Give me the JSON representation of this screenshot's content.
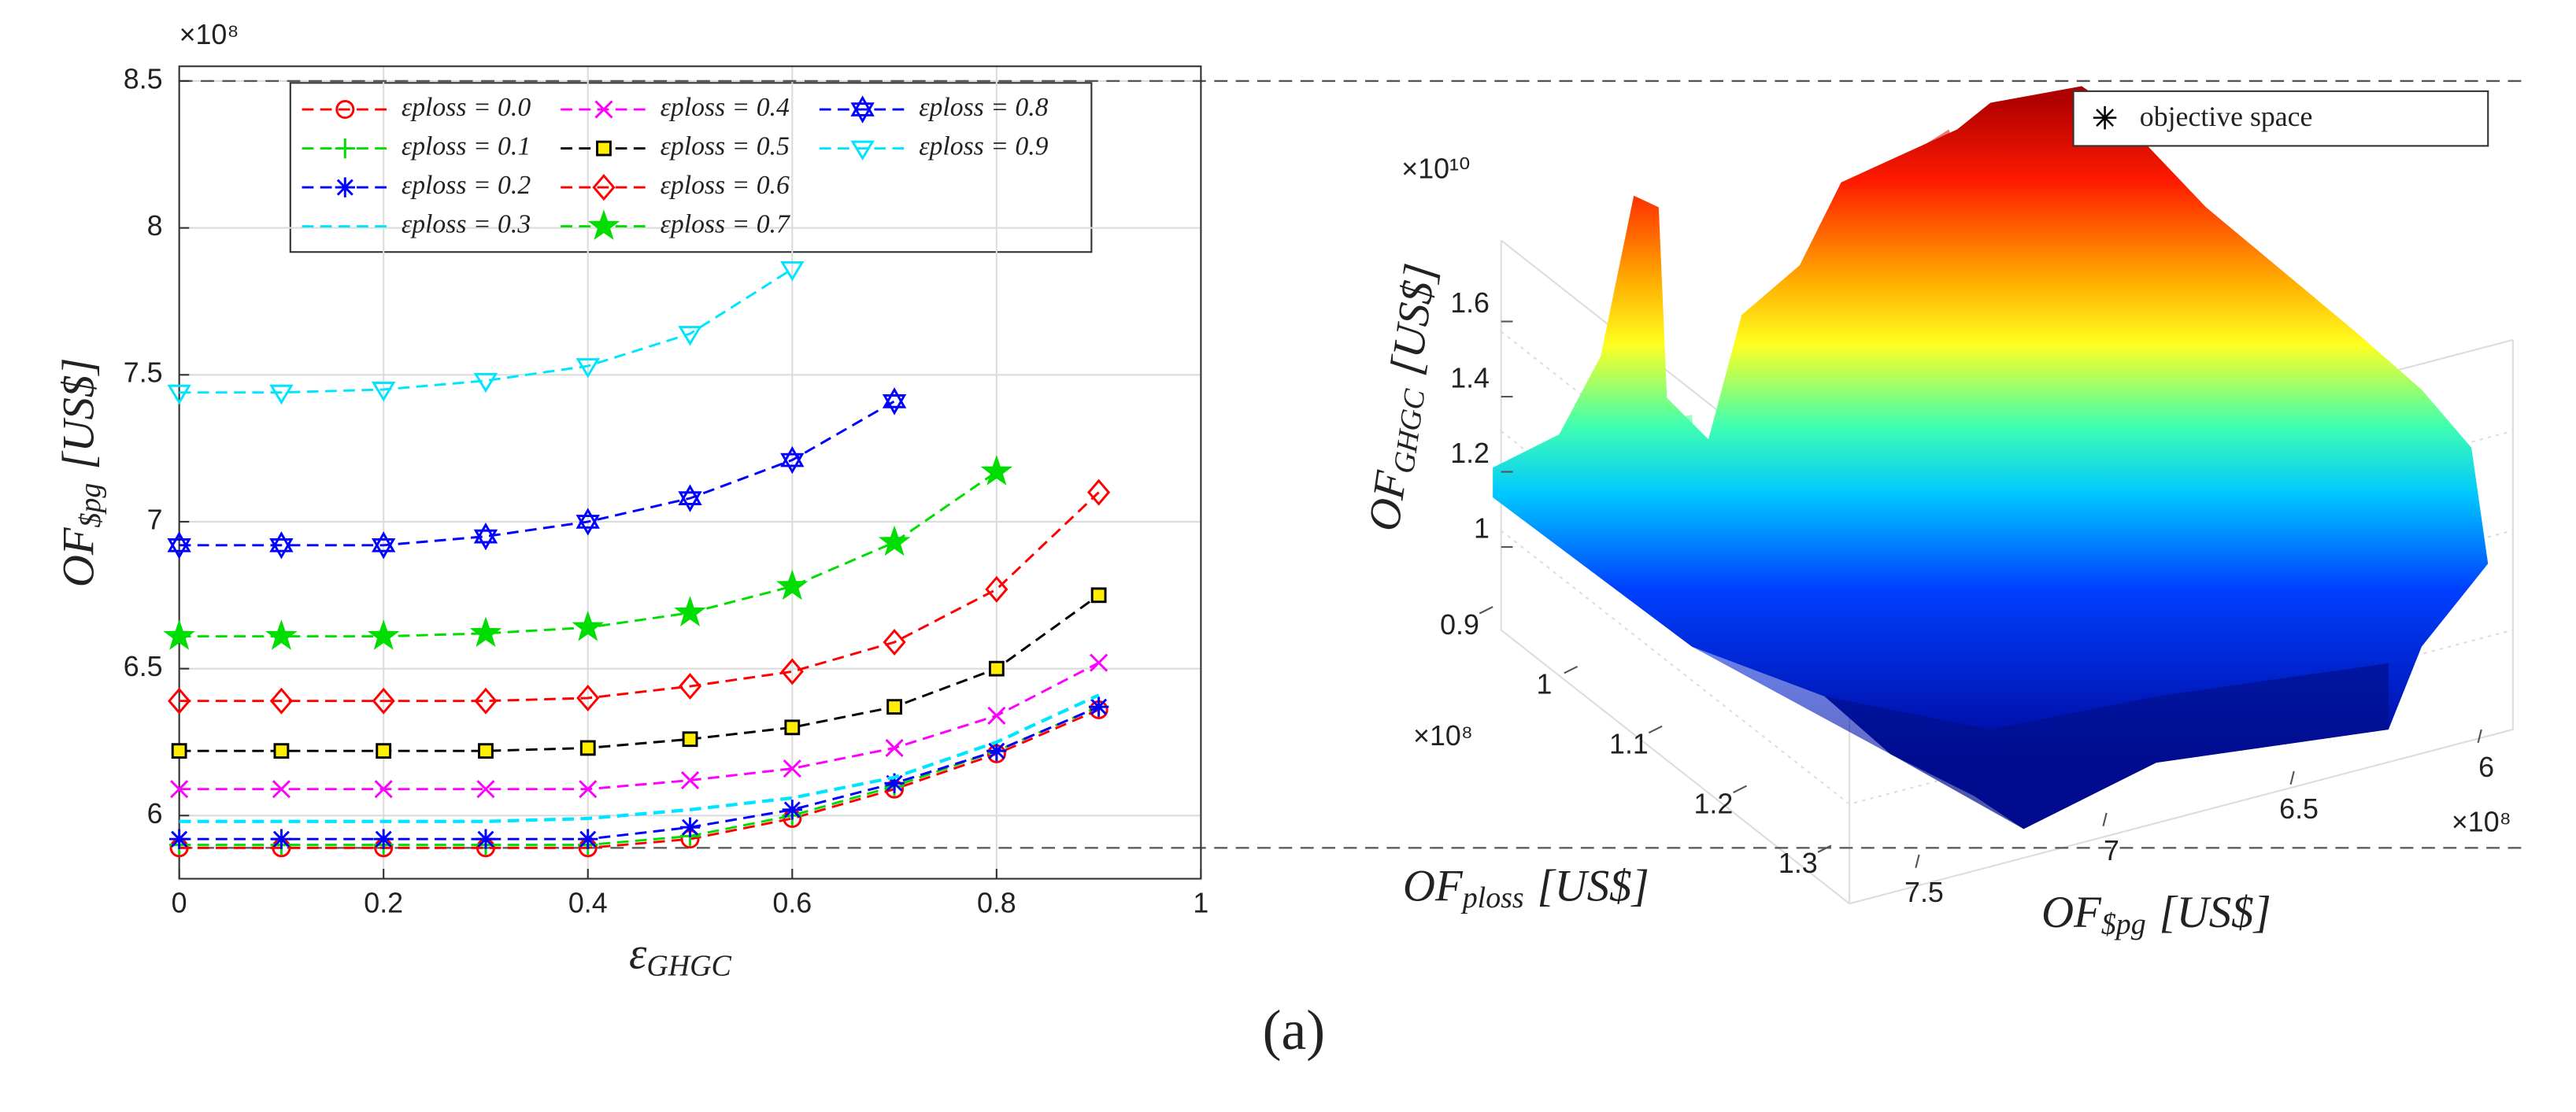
{
  "caption": "(a)",
  "chart_data": [
    {
      "type": "line",
      "exponent": "×10⁸",
      "xlabel": {
        "base": "ε",
        "sub": "GHGC"
      },
      "ylabel": {
        "base": "OF",
        "sub": "$pg",
        "unit": "[US$]"
      },
      "x": [
        0,
        0.1,
        0.2,
        0.3,
        0.4,
        0.5,
        0.6,
        0.7,
        0.8,
        0.9
      ],
      "xlim": [
        0,
        1
      ],
      "xticks": [
        0,
        0.2,
        0.4,
        0.6,
        0.8,
        1
      ],
      "ylim": [
        5.785,
        8.55
      ],
      "yticks": [
        6,
        6.5,
        7,
        7.5,
        8,
        8.5
      ],
      "grid": true,
      "hlines": [
        8.5,
        5.89
      ],
      "series": [
        {
          "name": "εploss = 0.0",
          "color": "#ff0000",
          "marker": "circle",
          "values": [
            5.89,
            5.89,
            5.89,
            5.89,
            5.89,
            5.92,
            5.99,
            6.09,
            6.21,
            6.36
          ]
        },
        {
          "name": "εploss = 0.1",
          "color": "#00dd00",
          "marker": "plus",
          "values": [
            5.9,
            5.9,
            5.9,
            5.9,
            5.9,
            5.93,
            6.0,
            6.1,
            6.22,
            6.37
          ]
        },
        {
          "name": "εploss = 0.2",
          "color": "#0000ff",
          "marker": "asterisk",
          "values": [
            5.92,
            5.92,
            5.92,
            5.92,
            5.92,
            5.96,
            6.02,
            6.11,
            6.22,
            6.37
          ]
        },
        {
          "name": "εploss = 0.3",
          "color": "#00e5ff",
          "marker": "none",
          "values": [
            5.98,
            5.98,
            5.98,
            5.98,
            5.99,
            6.02,
            6.06,
            6.13,
            6.25,
            6.41
          ]
        },
        {
          "name": "εploss = 0.4",
          "color": "#ff00ff",
          "marker": "x",
          "values": [
            6.09,
            6.09,
            6.09,
            6.09,
            6.09,
            6.12,
            6.16,
            6.23,
            6.34,
            6.52
          ]
        },
        {
          "name": "εploss = 0.5",
          "color": "#000000",
          "marker": "square",
          "marker_face": "#ffee00",
          "values": [
            6.22,
            6.22,
            6.22,
            6.22,
            6.23,
            6.26,
            6.3,
            6.37,
            6.5,
            6.75
          ]
        },
        {
          "name": "εploss = 0.6",
          "color": "#ff0000",
          "marker": "diamond",
          "values": [
            6.39,
            6.39,
            6.39,
            6.39,
            6.4,
            6.44,
            6.49,
            6.59,
            6.77,
            7.1
          ]
        },
        {
          "name": "εploss = 0.7",
          "color": "#00dd00",
          "marker": "star",
          "values": [
            6.61,
            6.61,
            6.61,
            6.62,
            6.64,
            6.69,
            6.78,
            6.93,
            7.17,
            null
          ]
        },
        {
          "name": "εploss = 0.8",
          "color": "#0000ff",
          "marker": "hexagram",
          "values": [
            6.92,
            6.92,
            6.92,
            6.95,
            7.0,
            7.08,
            7.21,
            7.41,
            null,
            null
          ]
        },
        {
          "name": "εploss = 0.9",
          "color": "#00e5ff",
          "marker": "triangle-down",
          "values": [
            7.44,
            7.44,
            7.45,
            7.48,
            7.53,
            7.64,
            7.86,
            null,
            null,
            null
          ]
        }
      ]
    },
    {
      "type": "surface3d",
      "legend": "objective space",
      "xlabel": {
        "base": "OF",
        "sub": "ploss",
        "unit": "[US$]"
      },
      "ylabel": {
        "base": "OF",
        "sub": "$pg",
        "unit": "[US$]"
      },
      "zlabel": {
        "base": "OF",
        "sub": "GHGC",
        "unit": "[US$]"
      },
      "xexponent": "×10⁸",
      "yexponent": "×10⁸",
      "zexponent": "×10¹⁰",
      "xlim": [
        0.85,
        1.35
      ],
      "xticks": [
        0.9,
        1,
        1.1,
        1.2,
        1.3
      ],
      "ylim": [
        7.75,
        5.9
      ],
      "yticks": [
        7.5,
        7,
        6.5,
        6
      ],
      "zlim": [
        0.9,
        1.75
      ],
      "zticks": [
        1,
        1.2,
        1.4,
        1.6
      ]
    }
  ]
}
